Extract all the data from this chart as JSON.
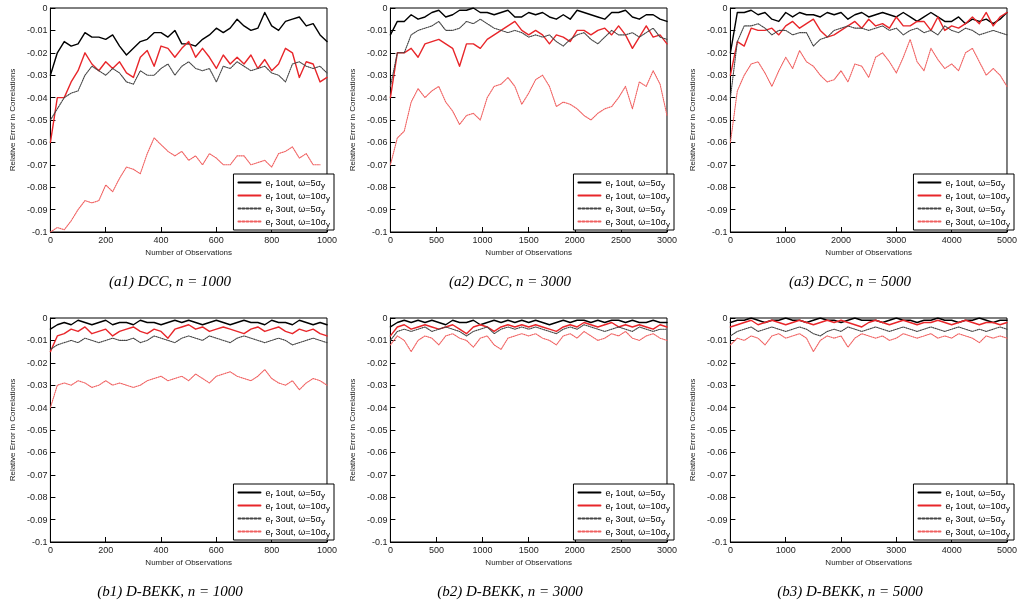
{
  "chart_data": [
    {
      "type": "line",
      "title": "(a1) DCC, n = 1000",
      "xlabel": "Number of Observations",
      "ylabel": "Relative Error in Correlations",
      "xlim": [
        0,
        1000
      ],
      "xticks": [
        0,
        200,
        400,
        600,
        800,
        1000
      ],
      "ylim": [
        -0.1,
        0
      ],
      "yticks": [
        -0.1,
        -0.09,
        -0.08,
        -0.07,
        -0.06,
        -0.05,
        -0.04,
        -0.03,
        -0.02,
        -0.01,
        0
      ],
      "grid": false,
      "legend": "bottom right",
      "marker": "none",
      "x": [
        0,
        25,
        50,
        75,
        100,
        125,
        150,
        175,
        200,
        225,
        250,
        275,
        300,
        325,
        350,
        375,
        400,
        425,
        450,
        475,
        500,
        525,
        550,
        575,
        600,
        625,
        650,
        675,
        700,
        725,
        750,
        775,
        800,
        825,
        850,
        875,
        900,
        925,
        950,
        975,
        1000
      ],
      "series": [
        {
          "name": "e$_{r}$ 1out, ω=5σ$_{y}$",
          "color": "#000000",
          "line_style": "solid",
          "values": [
            -0.03,
            -0.02,
            -0.015,
            -0.017,
            -0.016,
            -0.011,
            -0.013,
            -0.013,
            -0.014,
            -0.012,
            -0.017,
            -0.021,
            -0.018,
            -0.015,
            -0.014,
            -0.011,
            -0.011,
            -0.013,
            -0.01,
            -0.016,
            -0.016,
            -0.017,
            -0.014,
            -0.012,
            -0.009,
            -0.011,
            -0.009,
            -0.005,
            -0.008,
            -0.01,
            -0.009,
            -0.002,
            -0.008,
            -0.01,
            -0.006,
            -0.005,
            -0.004,
            -0.008,
            -0.007,
            -0.012,
            -0.015
          ]
        },
        {
          "name": "e$_{r}$ 1out, ω=10σ$_{y}$",
          "color": "#e8262a",
          "line_style": "solid",
          "values": [
            -0.06,
            -0.04,
            -0.04,
            -0.033,
            -0.028,
            -0.02,
            -0.025,
            -0.028,
            -0.024,
            -0.027,
            -0.024,
            -0.029,
            -0.031,
            -0.022,
            -0.019,
            -0.026,
            -0.017,
            -0.018,
            -0.022,
            -0.018,
            -0.015,
            -0.022,
            -0.018,
            -0.022,
            -0.027,
            -0.021,
            -0.025,
            -0.022,
            -0.025,
            -0.021,
            -0.027,
            -0.023,
            -0.028,
            -0.025,
            -0.018,
            -0.02,
            -0.031,
            -0.024,
            -0.025,
            -0.033,
            -0.031
          ]
        },
        {
          "name": "e$_{r}$ 3out, ω=5σ$_{y}$",
          "color": "#444444",
          "line_style": "dotted",
          "values": [
            -0.05,
            -0.045,
            -0.04,
            -0.038,
            -0.037,
            -0.03,
            -0.026,
            -0.028,
            -0.03,
            -0.027,
            -0.029,
            -0.033,
            -0.034,
            -0.028,
            -0.03,
            -0.03,
            -0.027,
            -0.025,
            -0.03,
            -0.026,
            -0.024,
            -0.027,
            -0.028,
            -0.027,
            -0.033,
            -0.026,
            -0.027,
            -0.024,
            -0.026,
            -0.028,
            -0.027,
            -0.026,
            -0.029,
            -0.03,
            -0.033,
            -0.025,
            -0.024,
            -0.026,
            -0.027,
            -0.026,
            -0.029
          ]
        },
        {
          "name": "e$_{r}$ 3out, ω=10σ$_{y}$",
          "color": "#f06060",
          "line_style": "dotted",
          "values": [
            -0.1,
            -0.098,
            -0.099,
            -0.095,
            -0.09,
            -0.086,
            -0.087,
            -0.086,
            -0.079,
            -0.082,
            -0.076,
            -0.071,
            -0.072,
            -0.074,
            -0.065,
            -0.058,
            -0.061,
            -0.064,
            -0.066,
            -0.064,
            -0.068,
            -0.066,
            -0.07,
            -0.065,
            -0.067,
            -0.07,
            -0.07,
            -0.066,
            -0.066,
            -0.07,
            -0.069,
            -0.068,
            -0.071,
            -0.065,
            -0.064,
            -0.062,
            -0.067,
            -0.065,
            -0.07,
            -0.07,
            null
          ]
        }
      ]
    },
    {
      "type": "line",
      "title": "(a2) DCC, n = 3000",
      "xlabel": "Number of Observations",
      "ylabel": "Relative Error in Correlations",
      "xlim": [
        0,
        3000
      ],
      "xticks": [
        0,
        500,
        1000,
        1500,
        2000,
        2500,
        3000
      ],
      "ylim": [
        -0.1,
        0
      ],
      "yticks": [
        -0.1,
        -0.09,
        -0.08,
        -0.07,
        -0.06,
        -0.05,
        -0.04,
        -0.03,
        -0.02,
        -0.01,
        0
      ],
      "grid": false,
      "legend": "bottom right",
      "marker": "none",
      "x": [
        0,
        75,
        150,
        225,
        300,
        375,
        450,
        525,
        600,
        675,
        750,
        825,
        900,
        975,
        1050,
        1125,
        1200,
        1275,
        1350,
        1425,
        1500,
        1575,
        1650,
        1725,
        1800,
        1875,
        1950,
        2025,
        2100,
        2175,
        2250,
        2325,
        2400,
        2475,
        2550,
        2625,
        2700,
        2775,
        2850,
        2925,
        3000
      ],
      "series": [
        {
          "name": "e$_{r}$ 1out, ω=5σ$_{y}$",
          "color": "#000000",
          "line_style": "solid",
          "values": [
            -0.012,
            -0.006,
            -0.006,
            -0.003,
            -0.005,
            -0.004,
            -0.002,
            -0.001,
            -0.004,
            -0.003,
            -0.001,
            -0.001,
            0,
            -0.002,
            -0.002,
            -0.003,
            -0.002,
            -0.001,
            -0.004,
            -0.004,
            -0.002,
            -0.003,
            -0.002,
            -0.004,
            -0.005,
            -0.003,
            -0.005,
            -0.001,
            -0.002,
            -0.003,
            -0.004,
            -0.005,
            -0.002,
            -0.002,
            -0.001,
            -0.004,
            -0.005,
            -0.003,
            -0.003,
            -0.005,
            -0.006
          ]
        },
        {
          "name": "e$_{r}$ 1out, ω=10σ$_{y}$",
          "color": "#e8262a",
          "line_style": "solid",
          "values": [
            -0.04,
            -0.02,
            -0.02,
            -0.018,
            -0.022,
            -0.016,
            -0.015,
            -0.014,
            -0.016,
            -0.018,
            -0.026,
            -0.016,
            -0.016,
            -0.018,
            -0.014,
            -0.012,
            -0.01,
            -0.008,
            -0.006,
            -0.01,
            -0.012,
            -0.01,
            -0.012,
            -0.016,
            -0.012,
            -0.013,
            -0.015,
            -0.01,
            -0.01,
            -0.012,
            -0.01,
            -0.009,
            -0.012,
            -0.008,
            -0.012,
            -0.018,
            -0.013,
            -0.008,
            -0.013,
            -0.012,
            -0.016
          ]
        },
        {
          "name": "e$_{r}$ 3out, ω=5σ$_{y}$",
          "color": "#444444",
          "line_style": "dotted",
          "values": [
            -0.035,
            -0.02,
            -0.02,
            -0.012,
            -0.01,
            -0.009,
            -0.008,
            -0.006,
            -0.01,
            -0.01,
            -0.009,
            -0.006,
            -0.007,
            -0.005,
            -0.007,
            -0.009,
            -0.01,
            -0.011,
            -0.01,
            -0.011,
            -0.013,
            -0.012,
            -0.013,
            -0.012,
            -0.015,
            -0.017,
            -0.014,
            -0.012,
            -0.011,
            -0.014,
            -0.016,
            -0.013,
            -0.01,
            -0.012,
            -0.012,
            -0.011,
            -0.013,
            -0.011,
            -0.009,
            -0.013,
            -0.014
          ]
        },
        {
          "name": "e$_{r}$ 3out, ω=10σ$_{y}$",
          "color": "#f06060",
          "line_style": "dotted",
          "values": [
            -0.07,
            -0.058,
            -0.055,
            -0.042,
            -0.036,
            -0.04,
            -0.037,
            -0.035,
            -0.042,
            -0.046,
            -0.052,
            -0.048,
            -0.047,
            -0.05,
            -0.04,
            -0.035,
            -0.034,
            -0.031,
            -0.035,
            -0.043,
            -0.038,
            -0.032,
            -0.03,
            -0.035,
            -0.044,
            -0.042,
            -0.043,
            -0.045,
            -0.048,
            -0.05,
            -0.047,
            -0.045,
            -0.044,
            -0.04,
            -0.035,
            -0.045,
            -0.033,
            -0.035,
            -0.028,
            -0.034,
            -0.048
          ]
        }
      ]
    },
    {
      "type": "line",
      "title": "(a3) DCC, n = 5000",
      "xlabel": "Number of Observations",
      "ylabel": "Relative Error in Correlations",
      "xlim": [
        0,
        5000
      ],
      "xticks": [
        0,
        1000,
        2000,
        3000,
        4000,
        5000
      ],
      "ylim": [
        -0.1,
        0
      ],
      "yticks": [
        -0.1,
        -0.09,
        -0.08,
        -0.07,
        -0.06,
        -0.05,
        -0.04,
        -0.03,
        -0.02,
        -0.01,
        0
      ],
      "grid": false,
      "legend": "bottom right",
      "marker": "none",
      "x": [
        0,
        125,
        250,
        375,
        500,
        625,
        750,
        875,
        1000,
        1125,
        1250,
        1375,
        1500,
        1625,
        1750,
        1875,
        2000,
        2125,
        2250,
        2375,
        2500,
        2625,
        2750,
        2875,
        3000,
        3125,
        3250,
        3375,
        3500,
        3625,
        3750,
        3875,
        4000,
        4125,
        4250,
        4375,
        4500,
        4625,
        4750,
        4875,
        5000
      ],
      "series": [
        {
          "name": "e$_{r}$ 1out, ω=5σ$_{y}$",
          "color": "#000000",
          "line_style": "solid",
          "values": [
            -0.02,
            -0.002,
            -0.002,
            -0.001,
            -0.003,
            -0.002,
            -0.005,
            -0.006,
            -0.002,
            -0.004,
            -0.002,
            -0.003,
            -0.003,
            -0.004,
            -0.002,
            -0.003,
            -0.002,
            -0.005,
            -0.003,
            -0.002,
            -0.004,
            -0.003,
            -0.002,
            -0.003,
            -0.004,
            -0.002,
            -0.004,
            -0.006,
            -0.004,
            -0.002,
            -0.004,
            -0.006,
            -0.006,
            -0.004,
            -0.007,
            -0.005,
            -0.006,
            -0.005,
            -0.007,
            -0.005,
            -0.002
          ]
        },
        {
          "name": "e$_{r}$ 1out, ω=10σ$_{y}$",
          "color": "#e8262a",
          "line_style": "solid",
          "values": [
            -0.03,
            -0.015,
            -0.017,
            -0.009,
            -0.01,
            -0.01,
            -0.009,
            -0.012,
            -0.008,
            -0.006,
            -0.009,
            -0.007,
            -0.005,
            -0.01,
            -0.013,
            -0.012,
            -0.01,
            -0.008,
            -0.006,
            -0.009,
            -0.005,
            -0.008,
            -0.007,
            -0.009,
            -0.004,
            -0.008,
            -0.008,
            -0.006,
            -0.006,
            -0.01,
            -0.004,
            -0.01,
            -0.008,
            -0.009,
            -0.007,
            -0.004,
            -0.007,
            -0.002,
            -0.008,
            -0.004,
            -0.002
          ]
        },
        {
          "name": "e$_{r}$ 3out, ω=5σ$_{y}$",
          "color": "#444444",
          "line_style": "dotted",
          "values": [
            -0.04,
            -0.015,
            -0.008,
            -0.008,
            -0.007,
            -0.009,
            -0.012,
            -0.01,
            -0.01,
            -0.012,
            -0.011,
            -0.011,
            -0.017,
            -0.014,
            -0.013,
            -0.01,
            -0.009,
            -0.008,
            -0.009,
            -0.009,
            -0.01,
            -0.009,
            -0.008,
            -0.01,
            -0.009,
            -0.012,
            -0.01,
            -0.009,
            -0.011,
            -0.01,
            -0.012,
            -0.008,
            -0.01,
            -0.011,
            -0.009,
            -0.01,
            -0.012,
            -0.011,
            -0.01,
            -0.011,
            -0.012
          ]
        },
        {
          "name": "e$_{r}$ 3out, ω=10σ$_{y}$",
          "color": "#f06060",
          "line_style": "dotted",
          "values": [
            -0.06,
            -0.037,
            -0.03,
            -0.025,
            -0.024,
            -0.029,
            -0.035,
            -0.028,
            -0.022,
            -0.027,
            -0.019,
            -0.024,
            -0.026,
            -0.03,
            -0.033,
            -0.032,
            -0.028,
            -0.033,
            -0.025,
            -0.026,
            -0.031,
            -0.022,
            -0.02,
            -0.024,
            -0.029,
            -0.022,
            -0.014,
            -0.024,
            -0.028,
            -0.018,
            -0.023,
            -0.027,
            -0.025,
            -0.028,
            -0.02,
            -0.018,
            -0.024,
            -0.03,
            -0.027,
            -0.03,
            -0.035
          ]
        }
      ]
    },
    {
      "type": "line",
      "title": "(b1) D-BEKK, n = 1000",
      "xlabel": "Number of Observations",
      "ylabel": "Relative Error in Correlations",
      "xlim": [
        0,
        1000
      ],
      "xticks": [
        0,
        200,
        400,
        600,
        800,
        1000
      ],
      "ylim": [
        -0.1,
        0
      ],
      "yticks": [
        -0.1,
        -0.09,
        -0.08,
        -0.07,
        -0.06,
        -0.05,
        -0.04,
        -0.03,
        -0.02,
        -0.01,
        0
      ],
      "grid": false,
      "legend": "bottom right",
      "marker": "none",
      "x": [
        0,
        25,
        50,
        75,
        100,
        125,
        150,
        175,
        200,
        225,
        250,
        275,
        300,
        325,
        350,
        375,
        400,
        425,
        450,
        475,
        500,
        525,
        550,
        575,
        600,
        625,
        650,
        675,
        700,
        725,
        750,
        775,
        800,
        825,
        850,
        875,
        900,
        925,
        950,
        975,
        1000
      ],
      "series": [
        {
          "name": "e$_{r}$ 1out, ω=5σ$_{y}$",
          "color": "#000000",
          "line_style": "solid",
          "values": [
            -0.005,
            -0.003,
            -0.002,
            -0.003,
            -0.001,
            -0.002,
            -0.003,
            -0.002,
            -0.001,
            -0.003,
            -0.002,
            -0.002,
            -0.003,
            -0.001,
            -0.002,
            -0.002,
            -0.003,
            -0.002,
            -0.001,
            -0.002,
            -0.001,
            -0.002,
            -0.003,
            -0.002,
            -0.001,
            -0.002,
            -0.003,
            -0.002,
            -0.001,
            -0.002,
            -0.002,
            -0.003,
            -0.001,
            -0.002,
            -0.002,
            -0.003,
            -0.001,
            -0.002,
            -0.003,
            -0.002,
            -0.003
          ]
        },
        {
          "name": "e$_{r}$ 1out, ω=10σ$_{y}$",
          "color": "#e8262a",
          "line_style": "solid",
          "values": [
            -0.015,
            -0.008,
            -0.007,
            -0.005,
            -0.006,
            -0.004,
            -0.007,
            -0.006,
            -0.005,
            -0.008,
            -0.006,
            -0.005,
            -0.004,
            -0.006,
            -0.007,
            -0.005,
            -0.006,
            -0.009,
            -0.005,
            -0.004,
            -0.003,
            -0.005,
            -0.004,
            -0.006,
            -0.005,
            -0.004,
            -0.005,
            -0.006,
            -0.007,
            -0.005,
            -0.004,
            -0.006,
            -0.005,
            -0.004,
            -0.006,
            -0.007,
            -0.005,
            -0.006,
            -0.005,
            -0.007,
            -0.008
          ]
        },
        {
          "name": "e$_{r}$ 3out, ω=5σ$_{y}$",
          "color": "#444444",
          "line_style": "dotted",
          "values": [
            -0.014,
            -0.012,
            -0.011,
            -0.01,
            -0.011,
            -0.009,
            -0.01,
            -0.011,
            -0.01,
            -0.009,
            -0.01,
            -0.01,
            -0.009,
            -0.011,
            -0.01,
            -0.008,
            -0.009,
            -0.01,
            -0.011,
            -0.009,
            -0.008,
            -0.009,
            -0.01,
            -0.008,
            -0.009,
            -0.01,
            -0.011,
            -0.009,
            -0.008,
            -0.009,
            -0.01,
            -0.011,
            -0.01,
            -0.009,
            -0.01,
            -0.012,
            -0.011,
            -0.01,
            -0.009,
            -0.01,
            -0.011
          ]
        },
        {
          "name": "e$_{r}$ 3out, ω=10σ$_{y}$",
          "color": "#f06060",
          "line_style": "dotted",
          "values": [
            -0.04,
            -0.03,
            -0.029,
            -0.03,
            -0.028,
            -0.029,
            -0.031,
            -0.03,
            -0.028,
            -0.03,
            -0.029,
            -0.03,
            -0.031,
            -0.03,
            -0.028,
            -0.027,
            -0.026,
            -0.028,
            -0.027,
            -0.026,
            -0.028,
            -0.025,
            -0.027,
            -0.029,
            -0.026,
            -0.025,
            -0.024,
            -0.026,
            -0.027,
            -0.028,
            -0.026,
            -0.023,
            -0.027,
            -0.029,
            -0.03,
            -0.028,
            -0.032,
            -0.029,
            -0.027,
            -0.028,
            -0.03
          ]
        }
      ]
    },
    {
      "type": "line",
      "title": "(b2) D-BEKK, n = 3000",
      "xlabel": "Number of Observations",
      "ylabel": "Relative Error in Correlations",
      "xlim": [
        0,
        3000
      ],
      "xticks": [
        0,
        500,
        1000,
        1500,
        2000,
        2500,
        3000
      ],
      "ylim": [
        -0.1,
        0
      ],
      "yticks": [
        -0.1,
        -0.09,
        -0.08,
        -0.07,
        -0.06,
        -0.05,
        -0.04,
        -0.03,
        -0.02,
        -0.01,
        0
      ],
      "grid": false,
      "legend": "bottom right",
      "marker": "none",
      "x": [
        0,
        75,
        150,
        225,
        300,
        375,
        450,
        525,
        600,
        675,
        750,
        825,
        900,
        975,
        1050,
        1125,
        1200,
        1275,
        1350,
        1425,
        1500,
        1575,
        1650,
        1725,
        1800,
        1875,
        1950,
        2025,
        2100,
        2175,
        2250,
        2325,
        2400,
        2475,
        2550,
        2625,
        2700,
        2775,
        2850,
        2925,
        3000
      ],
      "series": [
        {
          "name": "e$_{r}$ 1out, ω=5σ$_{y}$",
          "color": "#000000",
          "line_style": "solid",
          "values": [
            -0.004,
            -0.002,
            -0.001,
            -0.002,
            -0.001,
            -0.002,
            -0.001,
            -0.002,
            -0.003,
            -0.001,
            -0.002,
            -0.002,
            -0.001,
            -0.003,
            -0.002,
            -0.001,
            -0.002,
            -0.001,
            -0.002,
            -0.001,
            -0.002,
            -0.001,
            -0.002,
            -0.003,
            -0.002,
            -0.001,
            -0.002,
            -0.001,
            -0.001,
            -0.002,
            -0.001,
            -0.002,
            -0.001,
            -0.001,
            -0.002,
            -0.001,
            -0.002,
            -0.002,
            -0.001,
            -0.002,
            -0.002
          ]
        },
        {
          "name": "e$_{r}$ 1out, ω=10σ$_{y}$",
          "color": "#e8262a",
          "line_style": "solid",
          "values": [
            -0.008,
            -0.004,
            -0.003,
            -0.005,
            -0.004,
            -0.003,
            -0.004,
            -0.005,
            -0.004,
            -0.003,
            -0.005,
            -0.007,
            -0.004,
            -0.003,
            -0.004,
            -0.006,
            -0.004,
            -0.003,
            -0.004,
            -0.003,
            -0.004,
            -0.003,
            -0.004,
            -0.005,
            -0.006,
            -0.004,
            -0.003,
            -0.004,
            -0.002,
            -0.003,
            -0.004,
            -0.003,
            -0.002,
            -0.004,
            -0.003,
            -0.004,
            -0.003,
            -0.004,
            -0.005,
            -0.003,
            -0.004
          ]
        },
        {
          "name": "e$_{r}$ 3out, ω=5σ$_{y}$",
          "color": "#444444",
          "line_style": "dotted",
          "values": [
            -0.01,
            -0.006,
            -0.005,
            -0.006,
            -0.005,
            -0.004,
            -0.006,
            -0.005,
            -0.004,
            -0.005,
            -0.006,
            -0.008,
            -0.006,
            -0.005,
            -0.004,
            -0.007,
            -0.005,
            -0.004,
            -0.005,
            -0.004,
            -0.005,
            -0.004,
            -0.005,
            -0.006,
            -0.007,
            -0.005,
            -0.004,
            -0.005,
            -0.003,
            -0.004,
            -0.005,
            -0.006,
            -0.005,
            -0.004,
            -0.005,
            -0.006,
            -0.004,
            -0.005,
            -0.006,
            -0.005,
            -0.005
          ]
        },
        {
          "name": "e$_{r}$ 3out, ω=10σ$_{y}$",
          "color": "#f06060",
          "line_style": "dotted",
          "values": [
            -0.012,
            -0.008,
            -0.01,
            -0.015,
            -0.01,
            -0.008,
            -0.009,
            -0.012,
            -0.008,
            -0.007,
            -0.009,
            -0.01,
            -0.013,
            -0.009,
            -0.008,
            -0.012,
            -0.014,
            -0.009,
            -0.008,
            -0.007,
            -0.008,
            -0.007,
            -0.009,
            -0.01,
            -0.012,
            -0.008,
            -0.007,
            -0.009,
            -0.006,
            -0.008,
            -0.01,
            -0.009,
            -0.007,
            -0.008,
            -0.006,
            -0.009,
            -0.01,
            -0.008,
            -0.007,
            -0.009,
            -0.01
          ]
        }
      ]
    },
    {
      "type": "line",
      "title": "(b3) D-BEKK, n = 5000",
      "xlabel": "Number of Observations",
      "ylabel": "Relative Error in Correlations",
      "xlim": [
        0,
        5000
      ],
      "xticks": [
        0,
        1000,
        2000,
        3000,
        4000,
        5000
      ],
      "ylim": [
        -0.1,
        0
      ],
      "yticks": [
        -0.1,
        -0.09,
        -0.08,
        -0.07,
        -0.06,
        -0.05,
        -0.04,
        -0.03,
        -0.02,
        -0.01,
        0
      ],
      "grid": false,
      "legend": "bottom right",
      "marker": "none",
      "x": [
        0,
        125,
        250,
        375,
        500,
        625,
        750,
        875,
        1000,
        1125,
        1250,
        1375,
        1500,
        1625,
        1750,
        1875,
        2000,
        2125,
        2250,
        2375,
        2500,
        2625,
        2750,
        2875,
        3000,
        3125,
        3250,
        3375,
        3500,
        3625,
        3750,
        3875,
        4000,
        4125,
        4250,
        4375,
        4500,
        4625,
        4750,
        4875,
        5000
      ],
      "series": [
        {
          "name": "e$_{r}$ 1out, ω=5σ$_{y}$",
          "color": "#000000",
          "line_style": "solid",
          "values": [
            -0.002,
            -0.001,
            -0.001,
            0,
            -0.001,
            -0.002,
            -0.001,
            -0.001,
            0,
            -0.001,
            -0.001,
            -0.002,
            -0.001,
            0,
            -0.001,
            -0.001,
            -0.002,
            -0.001,
            0,
            -0.001,
            -0.001,
            -0.001,
            -0.002,
            -0.001,
            0,
            -0.001,
            -0.001,
            -0.002,
            -0.001,
            -0.001,
            0,
            -0.001,
            -0.001,
            -0.002,
            -0.001,
            -0.001,
            0,
            -0.001,
            -0.002,
            -0.001,
            -0.001
          ]
        },
        {
          "name": "e$_{r}$ 1out, ω=10σ$_{y}$",
          "color": "#e8262a",
          "line_style": "solid",
          "values": [
            -0.004,
            -0.003,
            -0.002,
            -0.001,
            -0.003,
            -0.002,
            -0.001,
            -0.002,
            -0.003,
            -0.002,
            -0.001,
            -0.002,
            -0.003,
            -0.002,
            -0.001,
            -0.002,
            -0.001,
            -0.002,
            -0.003,
            -0.004,
            -0.002,
            -0.001,
            -0.002,
            -0.003,
            -0.002,
            -0.001,
            -0.002,
            -0.003,
            -0.002,
            -0.002,
            -0.001,
            -0.002,
            -0.003,
            -0.002,
            -0.001,
            -0.002,
            -0.003,
            -0.002,
            -0.002,
            -0.003,
            -0.002
          ]
        },
        {
          "name": "e$_{r}$ 3out, ω=5σ$_{y}$",
          "color": "#444444",
          "line_style": "dotted",
          "values": [
            -0.008,
            -0.006,
            -0.005,
            -0.004,
            -0.006,
            -0.005,
            -0.004,
            -0.005,
            -0.006,
            -0.005,
            -0.004,
            -0.005,
            -0.007,
            -0.008,
            -0.006,
            -0.005,
            -0.006,
            -0.004,
            -0.005,
            -0.006,
            -0.005,
            -0.004,
            -0.005,
            -0.006,
            -0.005,
            -0.004,
            -0.005,
            -0.006,
            -0.005,
            -0.004,
            -0.005,
            -0.006,
            -0.005,
            -0.004,
            -0.005,
            -0.006,
            -0.005,
            -0.006,
            -0.005,
            -0.004,
            -0.005
          ]
        },
        {
          "name": "e$_{r}$ 3out, ω=10σ$_{y}$",
          "color": "#f06060",
          "line_style": "dotted",
          "values": [
            -0.012,
            -0.009,
            -0.01,
            -0.008,
            -0.009,
            -0.012,
            -0.008,
            -0.007,
            -0.009,
            -0.008,
            -0.007,
            -0.009,
            -0.015,
            -0.01,
            -0.008,
            -0.009,
            -0.008,
            -0.013,
            -0.009,
            -0.007,
            -0.008,
            -0.009,
            -0.008,
            -0.01,
            -0.009,
            -0.007,
            -0.008,
            -0.009,
            -0.008,
            -0.007,
            -0.009,
            -0.008,
            -0.009,
            -0.007,
            -0.008,
            -0.009,
            -0.011,
            -0.008,
            -0.009,
            -0.008,
            -0.009
          ]
        }
      ]
    }
  ]
}
